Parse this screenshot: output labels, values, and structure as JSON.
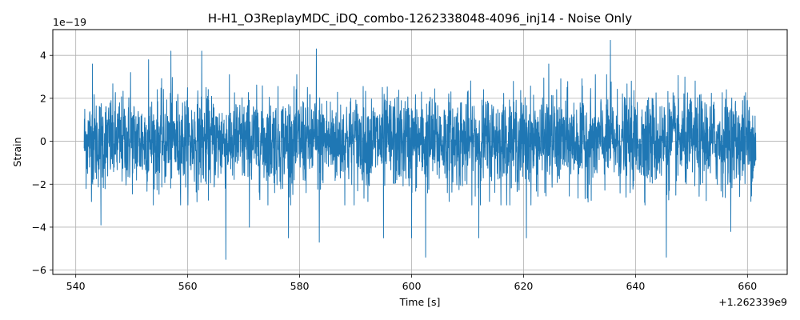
{
  "chart_data": {
    "type": "line",
    "title": "H-H1_O3ReplayMDC_iDQ_combo-1262338048-4096_inj14 - Noise Only",
    "xlabel": "Time [s]",
    "ylabel": "Strain",
    "x_offset_label": "+1.262339e9",
    "y_scale_label": "1e−19",
    "xlim": [
      535.9,
      667.1
    ],
    "ylim": [
      -6.2,
      5.2
    ],
    "xticks": [
      540,
      560,
      580,
      600,
      620,
      640,
      660
    ],
    "xtick_labels": [
      "540",
      "560",
      "580",
      "600",
      "620",
      "640",
      "660"
    ],
    "yticks": [
      -6,
      -4,
      -2,
      0,
      2,
      4
    ],
    "ytick_labels": [
      "−6",
      "−4",
      "−2",
      "0",
      "2",
      "4"
    ],
    "grid": true,
    "series": [
      {
        "color": "#1f77b4",
        "x_range": [
          541.5,
          661.5
        ],
        "typical_envelope": [
          -2.2,
          2.3
        ],
        "spikes": [
          {
            "x": 543.0,
            "y": 3.6
          },
          {
            "x": 544.5,
            "y": -3.9
          },
          {
            "x": 549.8,
            "y": 3.2
          },
          {
            "x": 553.0,
            "y": 3.8
          },
          {
            "x": 557.0,
            "y": 4.2
          },
          {
            "x": 562.5,
            "y": 4.2
          },
          {
            "x": 566.8,
            "y": -5.5
          },
          {
            "x": 571.0,
            "y": -4.0
          },
          {
            "x": 578.0,
            "y": -4.5
          },
          {
            "x": 583.0,
            "y": 4.3
          },
          {
            "x": 583.5,
            "y": -4.7
          },
          {
            "x": 595.0,
            "y": -4.5
          },
          {
            "x": 600.0,
            "y": -4.5
          },
          {
            "x": 602.5,
            "y": -5.4
          },
          {
            "x": 612.0,
            "y": -4.5
          },
          {
            "x": 620.5,
            "y": -4.5
          },
          {
            "x": 624.5,
            "y": 3.6
          },
          {
            "x": 635.5,
            "y": 4.7
          },
          {
            "x": 645.5,
            "y": -5.4
          },
          {
            "x": 657.0,
            "y": -4.2
          }
        ]
      }
    ]
  }
}
